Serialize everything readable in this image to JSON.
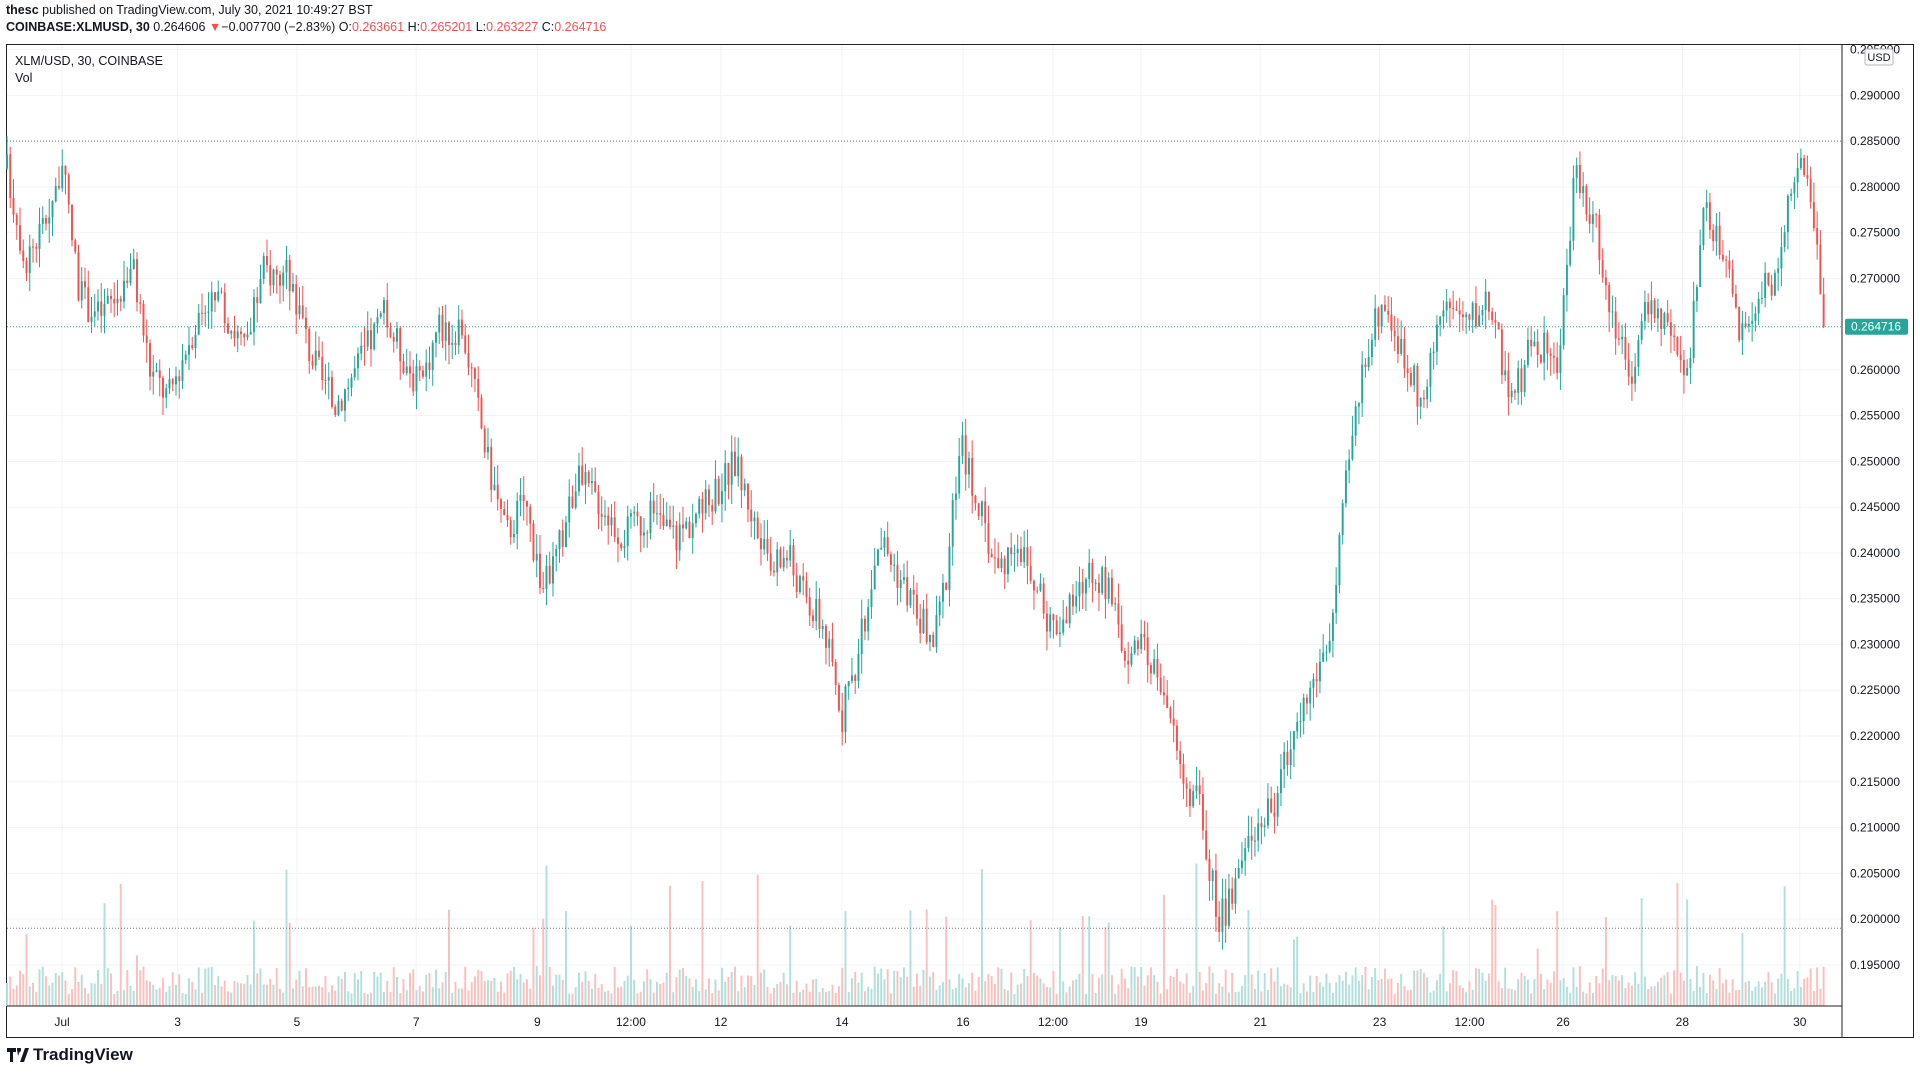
{
  "header": {
    "publisher": "thesc",
    "published_text": " published on TradingView.com, July 30, 2021 10:49:27 BST",
    "symbol": "COINBASE:XLMUSD, 30",
    "last": "0.264606",
    "change": "−0.007700 (−2.83%)",
    "arrow": "▼",
    "o_label": "O:",
    "o_value": "0.263661",
    "h_label": "H:",
    "h_value": "0.265201",
    "l_label": "L:",
    "l_value": "0.263227",
    "c_label": "C:",
    "c_value": "0.264716"
  },
  "legend": {
    "title": "XLM/USD, 30, COINBASE",
    "vol": "Vol"
  },
  "footer": {
    "logo_text": "TradingView"
  },
  "colors": {
    "up": "#26a69a",
    "down": "#ef5350",
    "vol_up": "#b2dfdb",
    "vol_down": "#f8c1bf",
    "price_label": "#26a69a",
    "grid": "#f0f3fa",
    "dotted": "#787b86"
  },
  "chart_data": {
    "type": "candlestick",
    "title": "XLM/USD, 30, COINBASE",
    "currency_label": "USD",
    "last_price_label": "0.264716",
    "ylim": [
      0.1905,
      0.2955
    ],
    "y_ticks": [
      "0.295000",
      "0.290000",
      "0.285000",
      "0.280000",
      "0.275000",
      "0.270000",
      "0.265000",
      "0.260000",
      "0.255000",
      "0.250000",
      "0.245000",
      "0.240000",
      "0.235000",
      "0.230000",
      "0.225000",
      "0.220000",
      "0.215000",
      "0.210000",
      "0.205000",
      "0.200000",
      "0.195000"
    ],
    "x_ticks": [
      {
        "label": "Jul",
        "pos": 0.03
      },
      {
        "label": "3",
        "pos": 0.093
      },
      {
        "label": "5",
        "pos": 0.158
      },
      {
        "label": "7",
        "pos": 0.223
      },
      {
        "label": "9",
        "pos": 0.289
      },
      {
        "label": "12:00",
        "pos": 0.34
      },
      {
        "label": "12",
        "pos": 0.389
      },
      {
        "label": "14",
        "pos": 0.455
      },
      {
        "label": "16",
        "pos": 0.521
      },
      {
        "label": "12:00",
        "pos": 0.57
      },
      {
        "label": "19",
        "pos": 0.618
      },
      {
        "label": "21",
        "pos": 0.683
      },
      {
        "label": "23",
        "pos": 0.748
      },
      {
        "label": "12:00",
        "pos": 0.797
      },
      {
        "label": "26",
        "pos": 0.848
      },
      {
        "label": "28",
        "pos": 0.913
      },
      {
        "label": "30",
        "pos": 0.977
      }
    ],
    "reference_lines": [
      0.285,
      0.199
    ],
    "last_price": 0.264716,
    "close_anchors": [
      [
        0.0,
        0.282
      ],
      [
        0.01,
        0.272
      ],
      [
        0.02,
        0.276
      ],
      [
        0.03,
        0.282
      ],
      [
        0.04,
        0.268
      ],
      [
        0.05,
        0.266
      ],
      [
        0.06,
        0.268
      ],
      [
        0.068,
        0.272
      ],
      [
        0.078,
        0.26
      ],
      [
        0.088,
        0.257
      ],
      [
        0.1,
        0.264
      ],
      [
        0.11,
        0.268
      ],
      [
        0.12,
        0.266
      ],
      [
        0.13,
        0.262
      ],
      [
        0.14,
        0.271
      ],
      [
        0.155,
        0.27
      ],
      [
        0.165,
        0.262
      ],
      [
        0.178,
        0.256
      ],
      [
        0.19,
        0.26
      ],
      [
        0.205,
        0.266
      ],
      [
        0.215,
        0.262
      ],
      [
        0.225,
        0.258
      ],
      [
        0.235,
        0.265
      ],
      [
        0.25,
        0.263
      ],
      [
        0.262,
        0.25
      ],
      [
        0.272,
        0.242
      ],
      [
        0.282,
        0.246
      ],
      [
        0.292,
        0.236
      ],
      [
        0.3,
        0.24
      ],
      [
        0.31,
        0.248
      ],
      [
        0.322,
        0.246
      ],
      [
        0.335,
        0.242
      ],
      [
        0.35,
        0.244
      ],
      [
        0.365,
        0.242
      ],
      [
        0.38,
        0.245
      ],
      [
        0.397,
        0.25
      ],
      [
        0.405,
        0.245
      ],
      [
        0.415,
        0.238
      ],
      [
        0.425,
        0.24
      ],
      [
        0.435,
        0.235
      ],
      [
        0.445,
        0.232
      ],
      [
        0.455,
        0.222
      ],
      [
        0.465,
        0.23
      ],
      [
        0.475,
        0.242
      ],
      [
        0.485,
        0.238
      ],
      [
        0.495,
        0.234
      ],
      [
        0.505,
        0.23
      ],
      [
        0.512,
        0.238
      ],
      [
        0.52,
        0.252
      ],
      [
        0.53,
        0.245
      ],
      [
        0.54,
        0.238
      ],
      [
        0.55,
        0.242
      ],
      [
        0.56,
        0.236
      ],
      [
        0.57,
        0.232
      ],
      [
        0.58,
        0.234
      ],
      [
        0.59,
        0.238
      ],
      [
        0.6,
        0.236
      ],
      [
        0.608,
        0.23
      ],
      [
        0.62,
        0.229
      ],
      [
        0.63,
        0.226
      ],
      [
        0.64,
        0.216
      ],
      [
        0.65,
        0.212
      ],
      [
        0.66,
        0.2
      ],
      [
        0.668,
        0.202
      ],
      [
        0.678,
        0.21
      ],
      [
        0.69,
        0.212
      ],
      [
        0.7,
        0.22
      ],
      [
        0.712,
        0.226
      ],
      [
        0.722,
        0.232
      ],
      [
        0.73,
        0.248
      ],
      [
        0.74,
        0.262
      ],
      [
        0.75,
        0.268
      ],
      [
        0.76,
        0.262
      ],
      [
        0.772,
        0.256
      ],
      [
        0.782,
        0.268
      ],
      [
        0.795,
        0.265
      ],
      [
        0.808,
        0.268
      ],
      [
        0.82,
        0.256
      ],
      [
        0.832,
        0.264
      ],
      [
        0.845,
        0.26
      ],
      [
        0.855,
        0.282
      ],
      [
        0.865,
        0.276
      ],
      [
        0.875,
        0.266
      ],
      [
        0.885,
        0.26
      ],
      [
        0.895,
        0.268
      ],
      [
        0.905,
        0.264
      ],
      [
        0.915,
        0.258
      ],
      [
        0.925,
        0.278
      ],
      [
        0.935,
        0.272
      ],
      [
        0.945,
        0.264
      ],
      [
        0.955,
        0.268
      ],
      [
        0.965,
        0.27
      ],
      [
        0.975,
        0.283
      ],
      [
        0.985,
        0.277
      ],
      [
        0.99,
        0.2647
      ]
    ]
  }
}
